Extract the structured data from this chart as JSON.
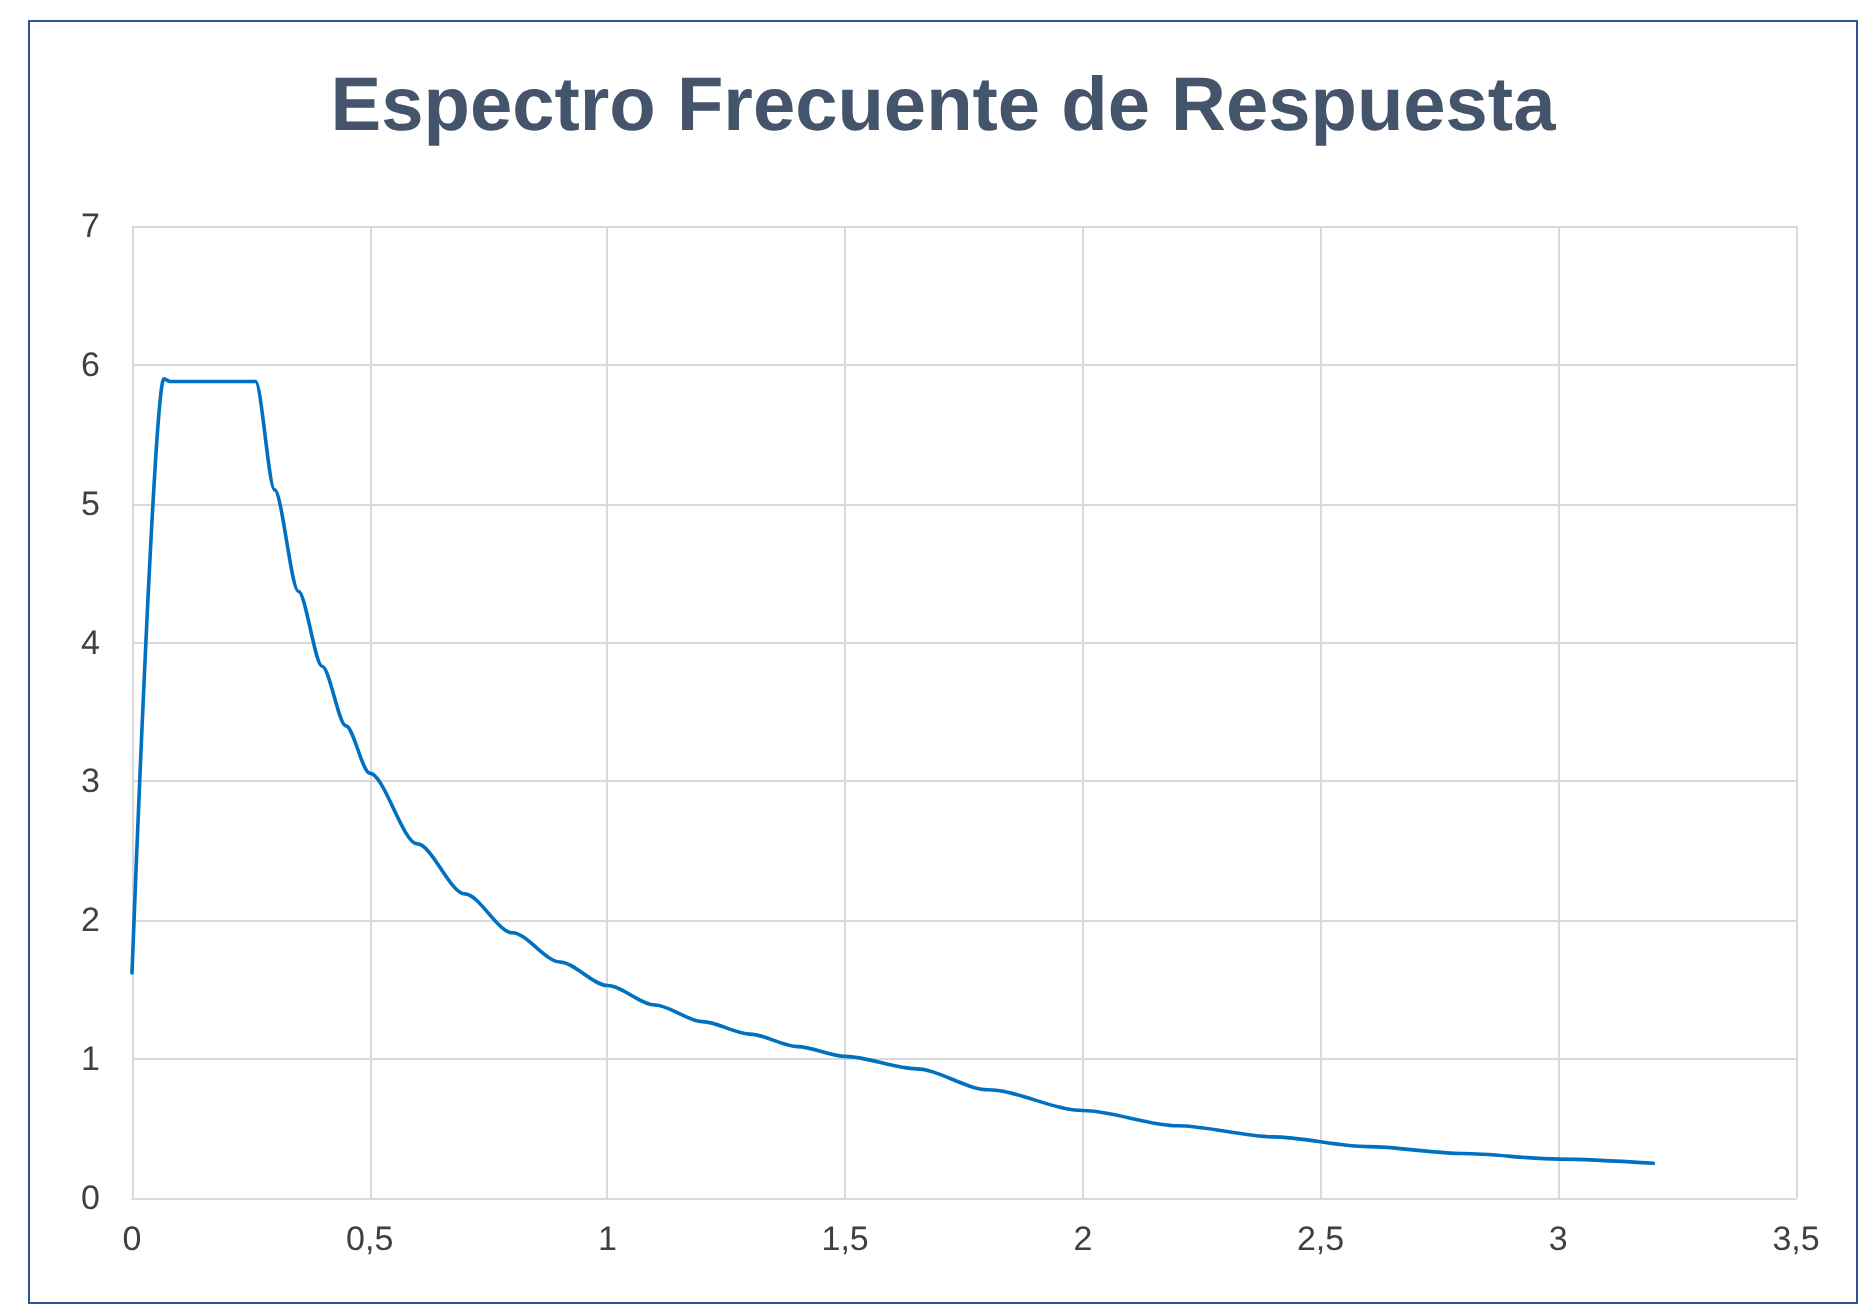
{
  "chart_data": {
    "type": "line",
    "title": "Espectro Frecuente de Respuesta",
    "x": [
      0,
      0.067,
      0.08,
      0.26,
      0.3,
      0.35,
      0.4,
      0.45,
      0.5,
      0.6,
      0.7,
      0.8,
      0.9,
      1,
      1.1,
      1.2,
      1.3,
      1.4,
      1.5,
      1.65,
      1.8,
      2,
      2.2,
      2.4,
      2.6,
      2.8,
      3,
      3.2
    ],
    "series": [
      {
        "color": "#0070c0",
        "values": [
          1.62,
          5.9,
          5.88,
          5.88,
          5.1,
          4.37,
          3.83,
          3.4,
          3.06,
          2.55,
          2.19,
          1.91,
          1.7,
          1.53,
          1.39,
          1.27,
          1.18,
          1.09,
          1.02,
          0.93,
          0.78,
          0.63,
          0.52,
          0.44,
          0.37,
          0.32,
          0.28,
          0.25
        ]
      }
    ],
    "xlim": [
      0,
      3.5
    ],
    "xticks": [
      0,
      {
        "value": 0.5,
        "label": "0,5"
      },
      1,
      {
        "value": 1.5,
        "label": "1,5"
      },
      2,
      {
        "value": 2.5,
        "label": "2,5"
      },
      3,
      {
        "value": 3.5,
        "label": "3,5"
      }
    ],
    "ylim": [
      0,
      7
    ],
    "yticks": [
      0,
      1,
      2,
      3,
      4,
      5,
      6,
      7
    ],
    "grid": true,
    "marker": "none",
    "line_style": "solid"
  }
}
